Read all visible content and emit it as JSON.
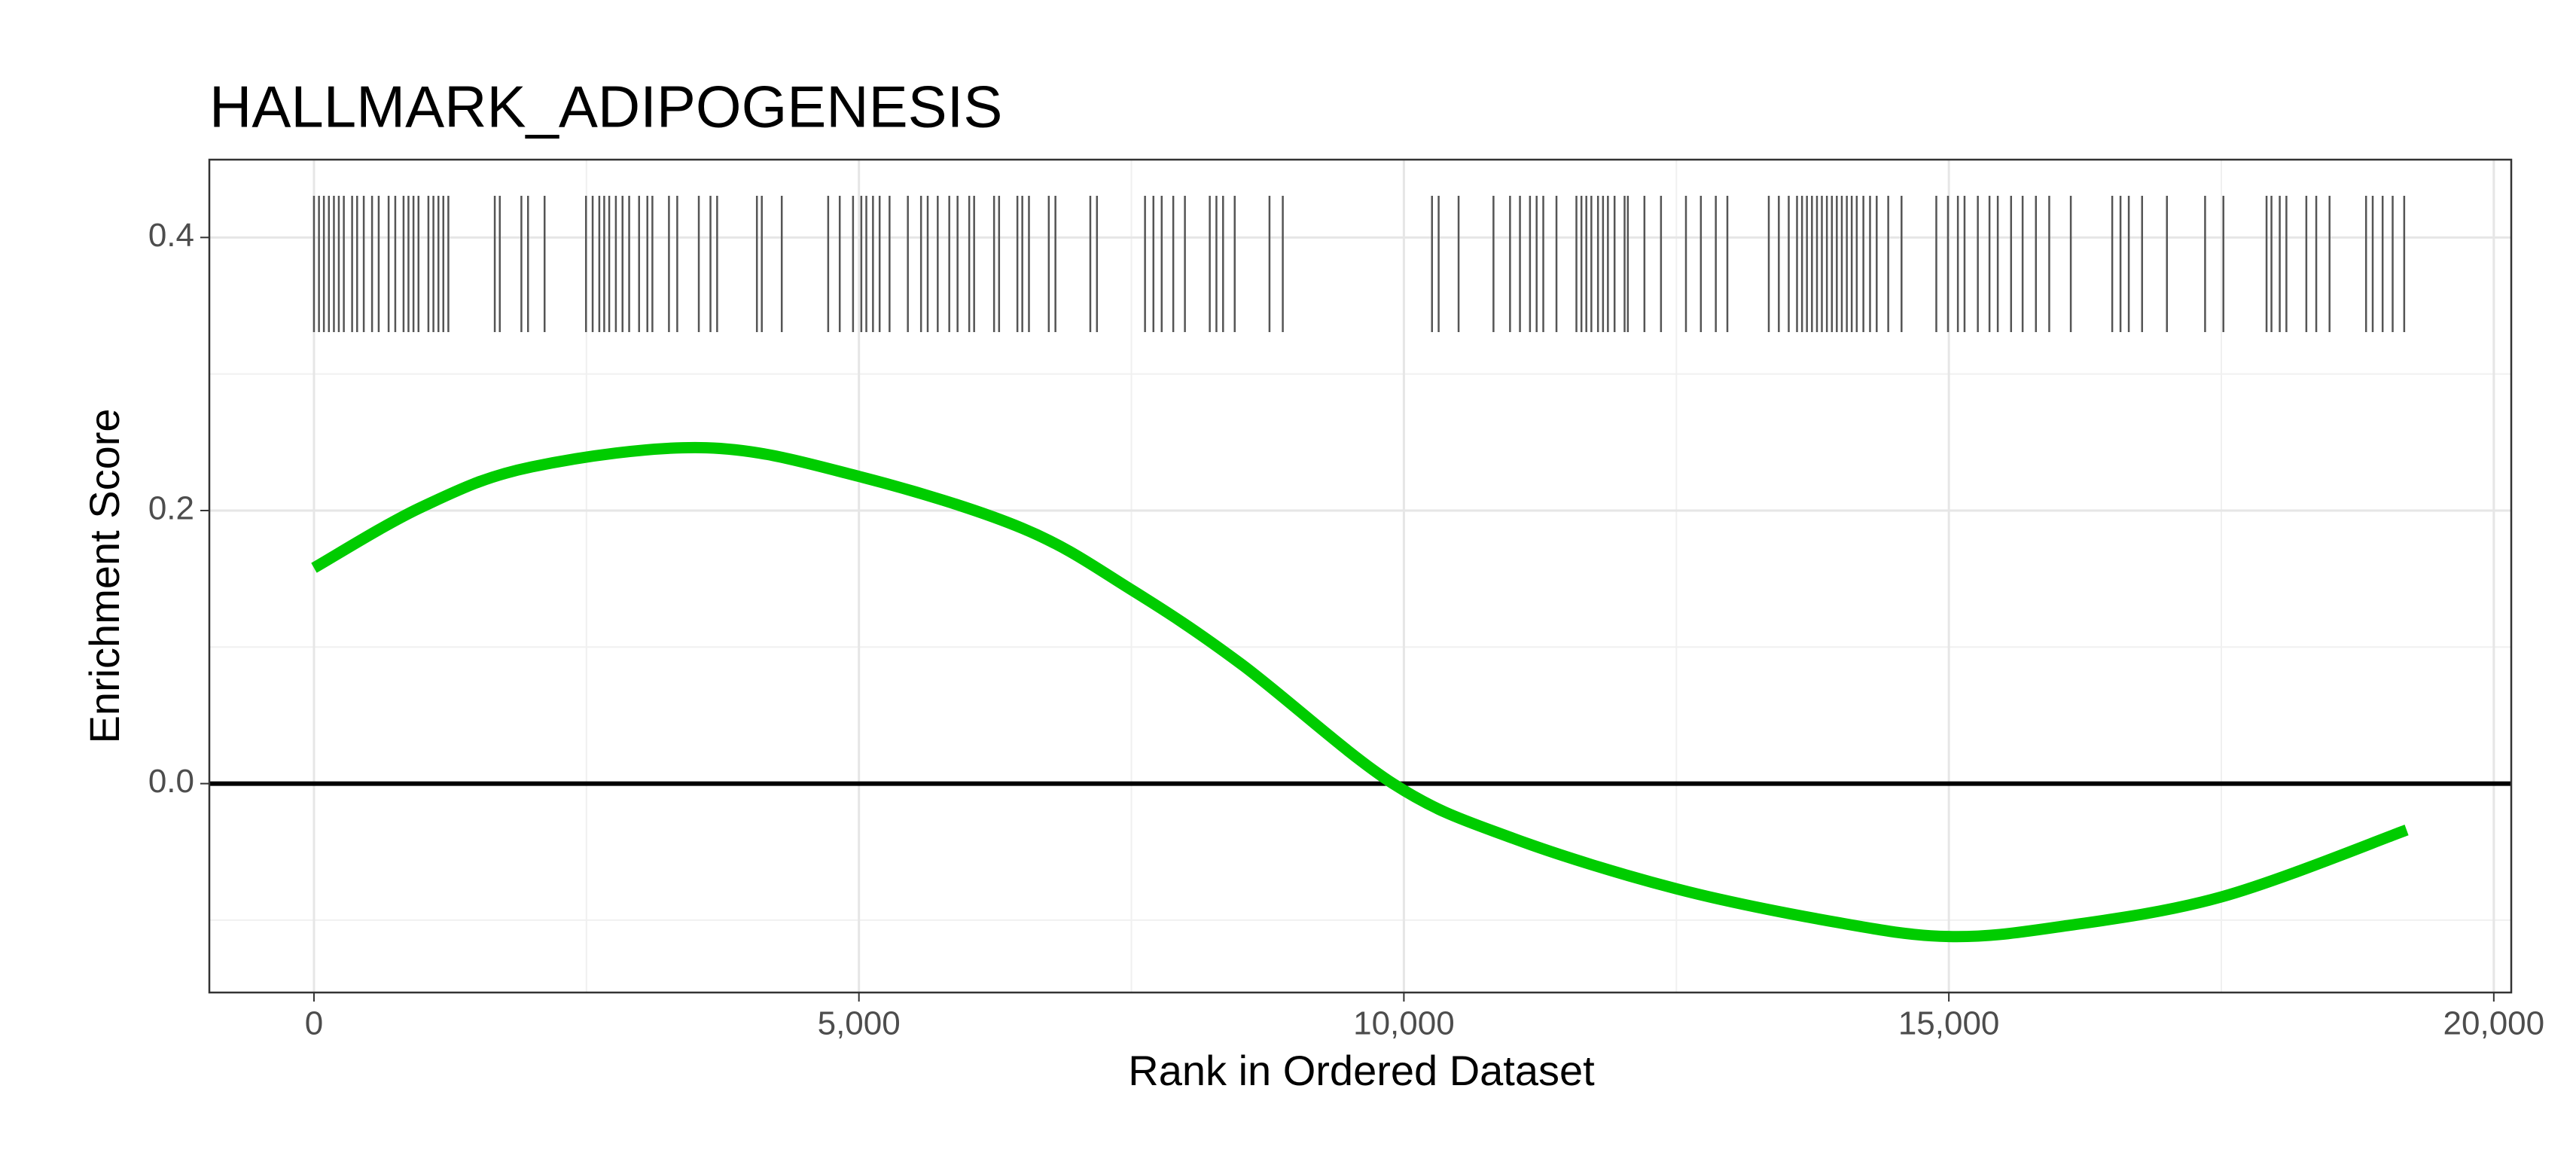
{
  "chart_data": {
    "type": "line",
    "title": "HALLMARK_ADIPOGENESIS",
    "x_label": "Rank in Ordered Dataset",
    "y_label": "Enrichment Score",
    "x": [
      0,
      1000,
      2000,
      3600,
      5000,
      6500,
      7500,
      8500,
      9900,
      11000,
      12500,
      14000,
      15000,
      16000,
      17500,
      19200
    ],
    "series": [
      {
        "color": "#00cc00",
        "values": [
          0.158,
          0.203,
          0.232,
          0.246,
          0.225,
          0.187,
          0.142,
          0.088,
          0.0,
          -0.04,
          -0.077,
          -0.102,
          -0.112,
          -0.105,
          -0.083,
          -0.034
        ]
      }
    ],
    "rug": {
      "color": "#555555",
      "x": [
        0,
        46,
        91,
        137,
        183,
        228,
        274,
        350,
        396,
        457,
        533,
        594,
        685,
        746,
        822,
        867,
        913,
        959,
        1050,
        1096,
        1142,
        1187,
        1233,
        1659,
        1705,
        1903,
        1964,
        2116,
        2496,
        2557,
        2618,
        2663,
        2709,
        2770,
        2831,
        2892,
        2983,
        3059,
        3105,
        3257,
        3333,
        3531,
        3638,
        3699,
        4064,
        4109,
        4292,
        4718,
        4824,
        4946,
        5022,
        5068,
        5129,
        5190,
        5281,
        5449,
        5570,
        5631,
        5723,
        5829,
        5905,
        6012,
        6057,
        6240,
        6286,
        6454,
        6499,
        6560,
        6742,
        6803,
        7123,
        7184,
        7625,
        7702,
        7778,
        7884,
        7991,
        8219,
        8280,
        8341,
        8448,
        8767,
        8889,
        10258,
        10319,
        10502,
        10822,
        10974,
        11065,
        11157,
        11218,
        11279,
        11400,
        11583,
        11629,
        11674,
        11720,
        11781,
        11827,
        11872,
        11933,
        12025,
        12055,
        12207,
        12359,
        12588,
        12725,
        12862,
        12968,
        13348,
        13440,
        13531,
        13607,
        13653,
        13698,
        13744,
        13790,
        13835,
        13881,
        13927,
        13972,
        14018,
        14064,
        14109,
        14155,
        14216,
        14277,
        14338,
        14444,
        14566,
        14885,
        14992,
        15083,
        15144,
        15266,
        15373,
        15449,
        15571,
        15677,
        15799,
        15921,
        16119,
        16499,
        16575,
        16651,
        16773,
        17001,
        17351,
        17519,
        17915,
        17960,
        18036,
        18097,
        18280,
        18371,
        18493,
        18828,
        18889,
        18980,
        19072,
        19178
      ]
    },
    "hline": 0,
    "xlim": [
      -960,
      20160
    ],
    "ylim": [
      -0.153,
      0.457
    ],
    "xticks": [
      {
        "value": 0,
        "label": "0"
      },
      {
        "value": 5000,
        "label": "5,000"
      },
      {
        "value": 10000,
        "label": "10,000"
      },
      {
        "value": 15000,
        "label": "15,000"
      },
      {
        "value": 20000,
        "label": "20,000"
      }
    ],
    "yticks": [
      {
        "value": 0,
        "label": "0.0"
      },
      {
        "value": 0.2,
        "label": "0.2"
      },
      {
        "value": 0.4,
        "label": "0.4"
      }
    ],
    "minor_xticks": [
      2500,
      7500,
      12500,
      17500
    ],
    "minor_yticks": [
      -0.1,
      0.1,
      0.3
    ],
    "grid": true
  }
}
